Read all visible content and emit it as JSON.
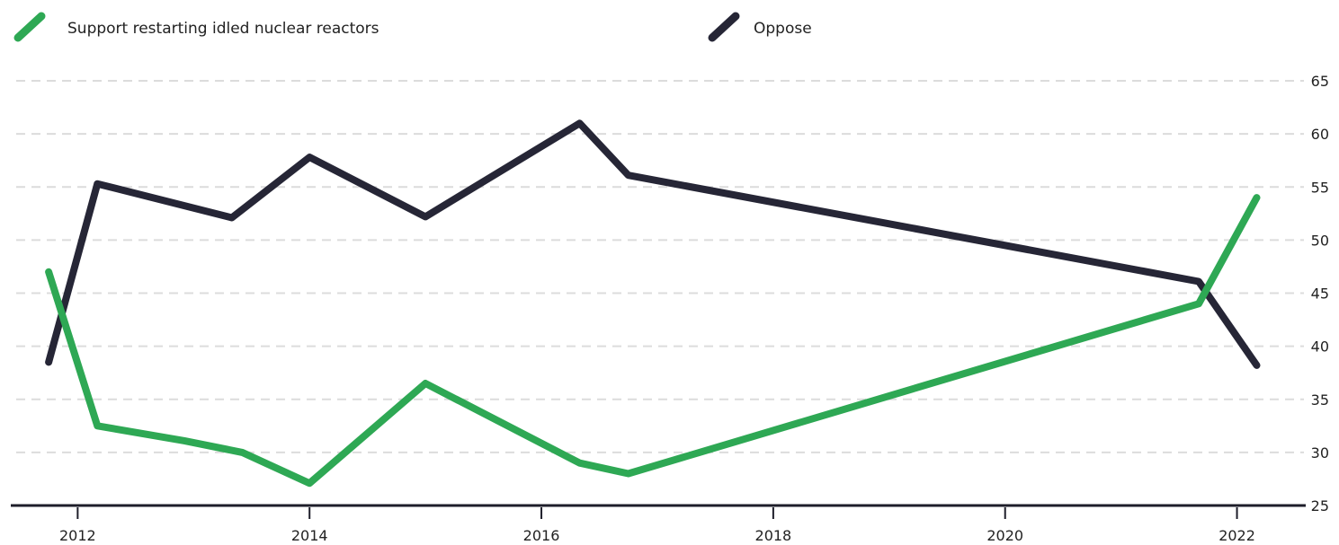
{
  "chart_data": {
    "type": "line",
    "title": "",
    "xlabel": "",
    "ylabel": "",
    "x_ticks": [
      "2012",
      "2014",
      "2016",
      "2018",
      "2020",
      "2022"
    ],
    "y_ticks": [
      "25",
      "30",
      "35",
      "40",
      "45",
      "50",
      "55",
      "60",
      "65"
    ],
    "xlim": [
      2011.33,
      2022.88
    ],
    "ylim": [
      25,
      65
    ],
    "grid": true,
    "legend_position": "top",
    "series": [
      {
        "name": "Support restarting idled nuclear reactors",
        "color": "#2ea854",
        "points": [
          {
            "x": 2011.75,
            "y": 47
          },
          {
            "x": 2012.17,
            "y": 32.5
          },
          {
            "x": 2012.92,
            "y": 31.1
          },
          {
            "x": 2013.42,
            "y": 30
          },
          {
            "x": 2014.0,
            "y": 27.1
          },
          {
            "x": 2015.0,
            "y": 36.5
          },
          {
            "x": 2016.33,
            "y": 29
          },
          {
            "x": 2016.75,
            "y": 28
          },
          {
            "x": 2021.67,
            "y": 44
          },
          {
            "x": 2022.17,
            "y": 54
          }
        ]
      },
      {
        "name": "Oppose",
        "color": "#262636",
        "points": [
          {
            "x": 2011.75,
            "y": 38.5
          },
          {
            "x": 2012.17,
            "y": 55.3
          },
          {
            "x": 2013.33,
            "y": 52.1
          },
          {
            "x": 2014.0,
            "y": 57.8
          },
          {
            "x": 2015.0,
            "y": 52.2
          },
          {
            "x": 2016.33,
            "y": 61
          },
          {
            "x": 2016.75,
            "y": 56.1
          },
          {
            "x": 2021.67,
            "y": 46.1
          },
          {
            "x": 2022.17,
            "y": 38.2
          }
        ]
      }
    ]
  }
}
